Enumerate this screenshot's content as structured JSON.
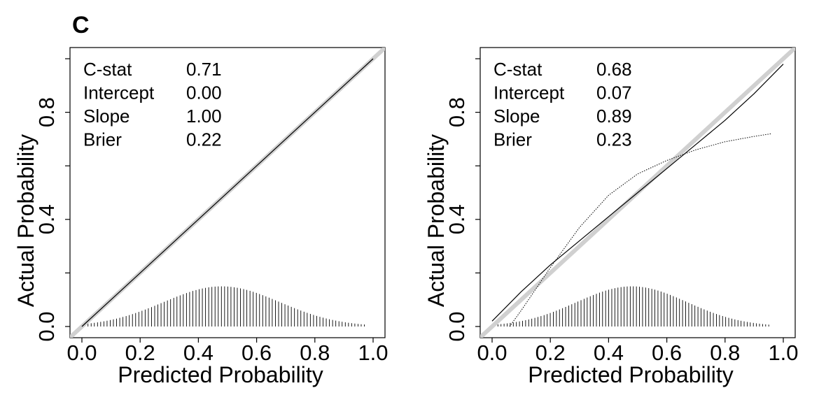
{
  "panel_label": "C",
  "colors": {
    "ideal_line": "#d0d0d0",
    "curve": "#000000",
    "frame": "#000000"
  },
  "chart_data": [
    {
      "type": "line",
      "title": "",
      "xlabel": "Predicted Probability",
      "ylabel": "Actual Probability",
      "xlim": [
        0,
        1
      ],
      "ylim": [
        0,
        1
      ],
      "xticks": [
        "0.0",
        "0.2",
        "0.4",
        "0.6",
        "0.8",
        "1.0"
      ],
      "yticks": [
        "0.0",
        "0.4",
        "0.8"
      ],
      "stats": [
        {
          "label": "C-stat",
          "value": "0.71"
        },
        {
          "label": "Intercept",
          "value": "0.00"
        },
        {
          "label": "Slope",
          "value": "1.00"
        },
        {
          "label": "Brier",
          "value": "0.22"
        }
      ],
      "series": [
        {
          "name": "ideal",
          "x": [
            0,
            1
          ],
          "y": [
            0,
            1
          ]
        },
        {
          "name": "calibration",
          "x": [
            0.0,
            0.2,
            0.4,
            0.6,
            0.8,
            1.0
          ],
          "y": [
            0.0,
            0.2,
            0.4,
            0.6,
            0.8,
            1.0
          ]
        }
      ],
      "histogram": {
        "x_min": 0.01,
        "x_max": 0.97,
        "mean": 0.48,
        "sd": 0.2,
        "max_height": 0.15
      }
    },
    {
      "type": "line",
      "title": "",
      "xlabel": "Predicted Probability",
      "ylabel": "Actual Probability",
      "xlim": [
        0,
        1
      ],
      "ylim": [
        0,
        1
      ],
      "xticks": [
        "0.0",
        "0.2",
        "0.4",
        "0.6",
        "0.8",
        "1.0"
      ],
      "yticks": [
        "0.0",
        "0.4",
        "0.8"
      ],
      "stats": [
        {
          "label": "C-stat",
          "value": "0.68"
        },
        {
          "label": "Intercept",
          "value": "0.07"
        },
        {
          "label": "Slope",
          "value": "0.89"
        },
        {
          "label": "Brier",
          "value": "0.23"
        }
      ],
      "series": [
        {
          "name": "ideal",
          "x": [
            0,
            1
          ],
          "y": [
            0,
            1
          ]
        },
        {
          "name": "calibration",
          "x": [
            0.0,
            0.1,
            0.2,
            0.3,
            0.4,
            0.5,
            0.6,
            0.7,
            0.8,
            0.9,
            1.0
          ],
          "y": [
            0.02,
            0.13,
            0.23,
            0.32,
            0.41,
            0.5,
            0.59,
            0.68,
            0.77,
            0.87,
            0.98
          ]
        },
        {
          "name": "flexible",
          "x": [
            0.06,
            0.1,
            0.2,
            0.3,
            0.4,
            0.5,
            0.6,
            0.7,
            0.8,
            0.9,
            0.96
          ],
          "y": [
            0.0,
            0.06,
            0.22,
            0.37,
            0.49,
            0.57,
            0.62,
            0.66,
            0.69,
            0.71,
            0.72
          ]
        }
      ],
      "histogram": {
        "x_min": 0.02,
        "x_max": 0.95,
        "mean": 0.48,
        "sd": 0.19,
        "max_height": 0.15
      }
    }
  ]
}
